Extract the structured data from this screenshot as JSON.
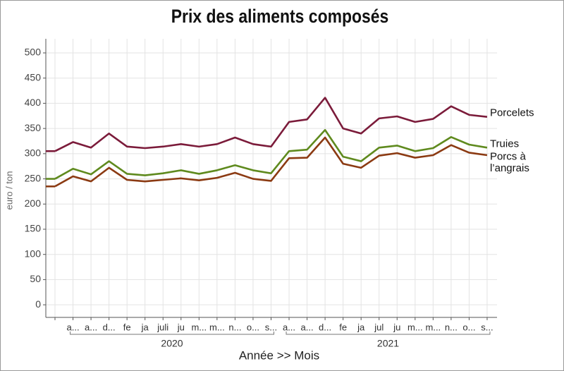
{
  "chart_data": {
    "type": "line",
    "title": "Prix des aliments composés",
    "x_label": "Année >> Mois",
    "y_label": "euro / ton",
    "categories": [
      null,
      "a...",
      "a...",
      "d...",
      "fe",
      "ja",
      "juli",
      "ju",
      "m...",
      "m...",
      "n...",
      "o...",
      "s...",
      "a...",
      "a...",
      "d...",
      "fe",
      "ja",
      "jul",
      "ju",
      "m...",
      "m...",
      "n...",
      "o...",
      "s..."
    ],
    "x_groups": [
      {
        "label": "2020",
        "start": 1,
        "end": 12
      },
      {
        "label": "2021",
        "start": 13,
        "end": 24
      }
    ],
    "series": [
      {
        "name": "Porcelets",
        "color": "#7b1b3a",
        "values": [
          305,
          323,
          312,
          340,
          314,
          311,
          314,
          319,
          314,
          319,
          332,
          319,
          314,
          363,
          368,
          411,
          350,
          340,
          370,
          374,
          363,
          369,
          394,
          377,
          373
        ]
      },
      {
        "name": "Truies",
        "color": "#5f8a1e",
        "values": [
          250,
          270,
          259,
          285,
          260,
          257,
          261,
          267,
          260,
          267,
          277,
          267,
          261,
          305,
          308,
          347,
          294,
          285,
          312,
          316,
          305,
          311,
          333,
          318,
          312
        ]
      },
      {
        "name": "Porcs à l’angrais",
        "color": "#8b3a12",
        "values": [
          235,
          255,
          245,
          272,
          248,
          245,
          248,
          251,
          247,
          252,
          262,
          250,
          246,
          291,
          292,
          332,
          280,
          272,
          296,
          301,
          292,
          297,
          317,
          302,
          297
        ]
      }
    ],
    "ylim": [
      -25,
      528
    ],
    "yticks": [
      0,
      50,
      100,
      150,
      200,
      250,
      300,
      350,
      400,
      450,
      500
    ],
    "grid": true
  }
}
